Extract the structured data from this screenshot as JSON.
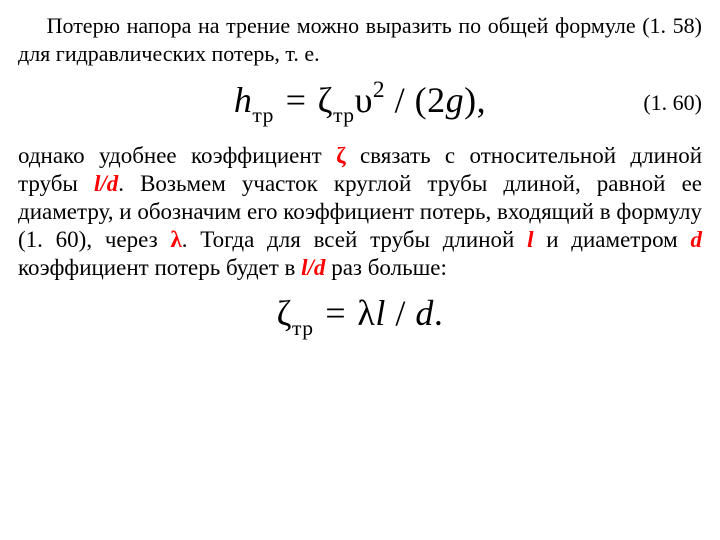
{
  "intro": "Потерю напора на трение можно выразить по общей формуле (1. 58) для гидравлических потерь, т. е.",
  "eq1_num": "(1. 60)",
  "main_1": "однако удобнее коэффициент ",
  "main_2_zeta": "ζ",
  "main_3": " связать с  относительной  длиной трубы ",
  "main_4_ld": "l/d",
  "main_5": ". Возьмем участок круглой трубы длиной, равной ее диаметру, и обозначим его коэффициент потерь, входящий в формулу (1. 60), через ",
  "main_6_lambda": "λ",
  "main_7": ". Тогда для всей трубы длиной ",
  "main_8_l": "l",
  "main_9": " и диаметром ",
  "main_10_d": "d",
  "main_11": " коэффициент потерь будет в ",
  "main_12_ld": "l/d",
  "main_13": " раз больше:",
  "eq1_h": "h",
  "eq1_tr": "тр",
  "eq1_eq": " = ",
  "eq1_zeta": "ζ",
  "eq1_v": "υ",
  "eq1_2": "2",
  "eq1_slash_open": " / (2",
  "eq1_g": "g",
  "eq1_close": "),",
  "eq2_zeta": "ζ",
  "eq2_tr": "тр",
  "eq2_eq": " = ",
  "eq2_lambda": "λ",
  "eq2_l": "l",
  "eq2_slash": " / ",
  "eq2_d": "d",
  "eq2_dot": "."
}
